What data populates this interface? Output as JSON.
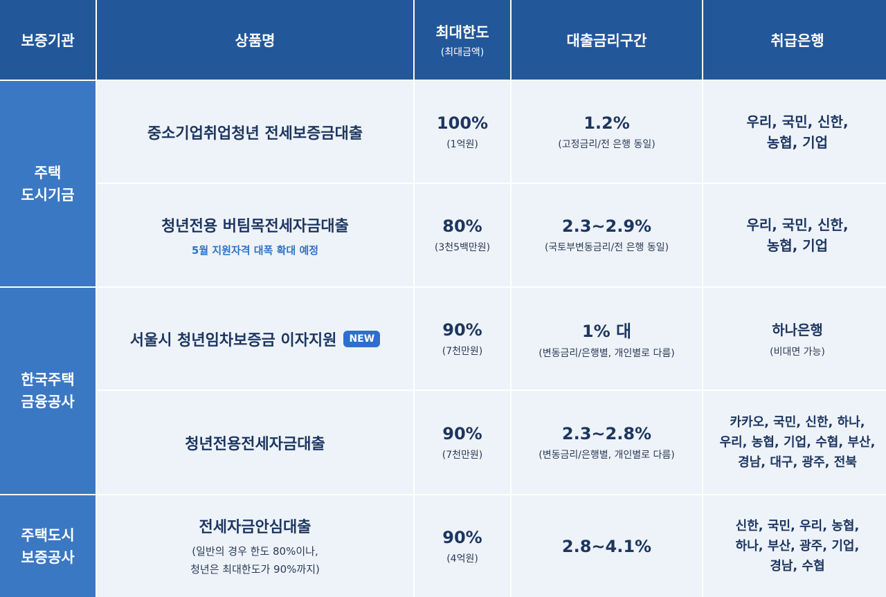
{
  "headers": {
    "agency": "보증기관",
    "product": "상품명",
    "limit": "최대한도",
    "limit_sub": "(최대금액)",
    "rate": "대출금리구간",
    "banks": "취급은행"
  },
  "groups": [
    {
      "line1": "주택",
      "line2": "도시기금"
    },
    {
      "line1": "한국주택",
      "line2": "금융공사"
    },
    {
      "line1": "주택도시",
      "line2": "보증공사"
    }
  ],
  "rows": [
    {
      "product": "중소기업취업청년 전세보증금대출",
      "limit": "100%",
      "limit_sub": "(1억원)",
      "rate": "1.2%",
      "rate_sub": "(고정금리/전 은행 동일)",
      "banks_line1": "우리, 국민, 신한,",
      "banks_line2": "농협, 기업"
    },
    {
      "product": "청년전용 버팀목전세자금대출",
      "product_note": "5월 지원자격 대폭 확대 예정",
      "limit": "80%",
      "limit_sub": "(3천5백만원)",
      "rate": "2.3~2.9%",
      "rate_sub": "(국토부변동금리/전 은행 동일)",
      "banks_line1": "우리, 국민, 신한,",
      "banks_line2": "농협, 기업"
    },
    {
      "product": "서울시 청년임차보증금 이자지원",
      "badge": "NEW",
      "limit": "90%",
      "limit_sub": "(7천만원)",
      "rate": "1% 대",
      "rate_sub": "(변동금리/은행별, 개인별로 다름)",
      "banks_line1": "하나은행",
      "banks_sub": "(비대면 가능)"
    },
    {
      "product": "청년전용전세자금대출",
      "limit": "90%",
      "limit_sub": "(7천만원)",
      "rate": "2.3~2.8%",
      "rate_sub": "(변동금리/은행별, 개인별로 다름)",
      "banks_line1": "카카오, 국민, 신한, 하나,",
      "banks_line2": "우리, 농협, 기업, 수협, 부산,",
      "banks_line3": "경남, 대구, 광주, 전북"
    },
    {
      "product": "전세자금안심대출",
      "product_desc1": "(일반의 경우 한도 80%이나,",
      "product_desc2": "청년은 최대한도가 90%까지)",
      "limit": "90%",
      "limit_sub": "(4억원)",
      "rate": "2.8~4.1%",
      "banks_line1": "신한, 국민, 우리, 농협,",
      "banks_line2": "하나, 부산, 광주, 기업,",
      "banks_line3": "경남, 수협"
    }
  ]
}
